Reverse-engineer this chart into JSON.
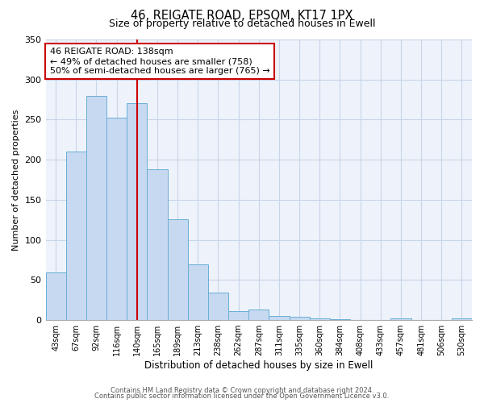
{
  "title": "46, REIGATE ROAD, EPSOM, KT17 1PX",
  "subtitle": "Size of property relative to detached houses in Ewell",
  "xlabel": "Distribution of detached houses by size in Ewell",
  "ylabel": "Number of detached properties",
  "bar_values": [
    60,
    210,
    280,
    252,
    271,
    188,
    126,
    70,
    34,
    11,
    13,
    5,
    4,
    2,
    1,
    0,
    0,
    2,
    0,
    0,
    2
  ],
  "all_labels": [
    "43sqm",
    "67sqm",
    "92sqm",
    "116sqm",
    "140sqm",
    "165sqm",
    "189sqm",
    "213sqm",
    "238sqm",
    "262sqm",
    "287sqm",
    "311sqm",
    "335sqm",
    "360sqm",
    "384sqm",
    "408sqm",
    "433sqm",
    "457sqm",
    "481sqm",
    "506sqm",
    "530sqm"
  ],
  "bar_color": "#c6d9f0",
  "bar_edge_color": "#6aaed6",
  "vline_x": 4,
  "vline_color": "#cc0000",
  "ylim": [
    0,
    350
  ],
  "yticks": [
    0,
    50,
    100,
    150,
    200,
    250,
    300,
    350
  ],
  "annotation_title": "46 REIGATE ROAD: 138sqm",
  "annotation_line1": "← 49% of detached houses are smaller (758)",
  "annotation_line2": "50% of semi-detached houses are larger (765) →",
  "annotation_box_color": "#ffffff",
  "annotation_box_edge": "#cc0000",
  "footer1": "Contains HM Land Registry data © Crown copyright and database right 2024.",
  "footer2": "Contains public sector information licensed under the Open Government Licence v3.0.",
  "background_color": "#ffffff",
  "plot_bg_color": "#eef3fb",
  "grid_color": "#c8d4e8"
}
